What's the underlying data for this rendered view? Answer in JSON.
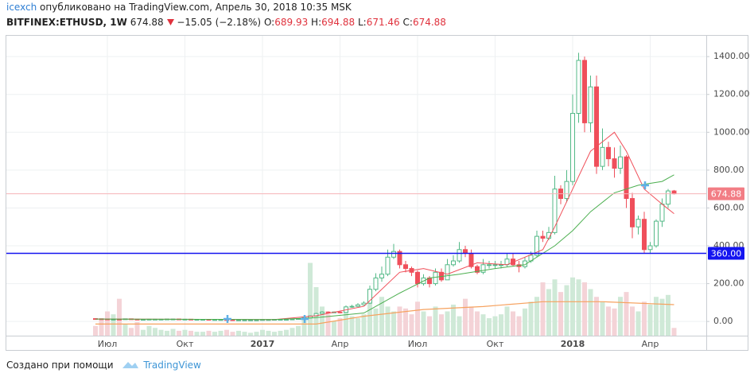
{
  "header": {
    "author": "icexch",
    "published": "опубликовано на TradingView.com, Апрель 30, 2018 10:35 MSK",
    "symbol": "BITFINEX:ETHUSD, 1W",
    "last": "674.88",
    "change": "−15.05 (−2.18%)",
    "ohlc": [
      {
        "key": "O:",
        "value": "689.93"
      },
      {
        "key": "H:",
        "value": "694.88"
      },
      {
        "key": "L:",
        "value": "671.46"
      },
      {
        "key": "C:",
        "value": "674.88"
      }
    ]
  },
  "chart_data": {
    "type": "candlestick",
    "categories": [
      null,
      null,
      "Июл",
      null,
      null,
      null,
      null,
      null,
      null,
      null,
      null,
      null,
      null,
      null,
      null,
      "Окт",
      null,
      null,
      null,
      null,
      null,
      null,
      null,
      null,
      null,
      null,
      null,
      null,
      "2017",
      null,
      null,
      null,
      null,
      null,
      null,
      null,
      null,
      null,
      null,
      null,
      null,
      "Апр",
      null,
      null,
      null,
      null,
      null,
      null,
      null,
      null,
      null,
      null,
      null,
      null,
      "Июл",
      null,
      null,
      null,
      null,
      null,
      null,
      null,
      null,
      null,
      null,
      null,
      null,
      "Окт",
      null,
      null,
      null,
      null,
      null,
      null,
      null,
      null,
      null,
      null,
      null,
      null,
      "2018",
      null,
      null,
      null,
      null,
      null,
      null,
      null,
      null,
      null,
      null,
      null,
      null,
      "Апр",
      null,
      null,
      null,
      null
    ],
    "open": [
      15,
      14,
      13,
      12,
      12,
      11,
      14,
      12,
      11,
      11,
      12,
      12,
      12,
      13,
      13,
      12,
      12,
      11,
      11,
      11,
      10,
      10,
      10,
      9,
      8,
      8,
      8,
      8,
      8,
      10,
      10,
      11,
      11,
      11,
      13,
      15,
      19,
      29,
      42,
      50,
      48,
      50,
      48,
      77,
      80,
      88,
      97,
      170,
      230,
      250,
      340,
      370,
      300,
      280,
      260,
      200,
      230,
      200,
      260,
      220,
      300,
      320,
      380,
      360,
      290,
      260,
      300,
      300,
      300,
      300,
      330,
      300,
      290,
      320,
      350,
      450,
      440,
      470,
      700,
      650,
      740,
      1100,
      1380,
      1050,
      1240,
      820,
      920,
      860,
      810,
      870,
      650,
      500,
      540,
      380,
      400,
      530,
      620,
      689.93
    ],
    "high": [
      17,
      15,
      14,
      13,
      13,
      15,
      15,
      13,
      12,
      13,
      13,
      13,
      14,
      14,
      14,
      13,
      13,
      12,
      12,
      12,
      11,
      11,
      11,
      10,
      9,
      9,
      9,
      9,
      11,
      11,
      12,
      12,
      12,
      14,
      16,
      21,
      32,
      46,
      55,
      53,
      53,
      54,
      85,
      88,
      97,
      107,
      190,
      255,
      290,
      380,
      410,
      380,
      320,
      290,
      270,
      250,
      240,
      280,
      280,
      330,
      350,
      420,
      400,
      380,
      300,
      330,
      320,
      320,
      320,
      360,
      360,
      320,
      340,
      370,
      480,
      480,
      500,
      770,
      720,
      800,
      1200,
      1420,
      1400,
      1300,
      1300,
      1020,
      950,
      920,
      930,
      880,
      680,
      560,
      580,
      420,
      540,
      650,
      700,
      694.88
    ],
    "low": [
      12,
      11,
      11,
      10,
      10,
      10,
      11,
      10,
      10,
      10,
      11,
      11,
      11,
      12,
      11,
      11,
      10,
      10,
      10,
      9,
      9,
      9,
      8,
      7,
      7,
      7,
      7,
      7,
      7,
      9,
      9,
      10,
      10,
      10,
      12,
      14,
      17,
      27,
      40,
      44,
      45,
      44,
      46,
      72,
      76,
      84,
      92,
      160,
      210,
      240,
      330,
      280,
      260,
      240,
      180,
      190,
      180,
      190,
      210,
      220,
      290,
      310,
      340,
      280,
      250,
      250,
      280,
      280,
      280,
      290,
      290,
      260,
      280,
      310,
      340,
      420,
      430,
      460,
      620,
      630,
      720,
      1050,
      1000,
      1000,
      780,
      800,
      820,
      760,
      780,
      600,
      440,
      460,
      360,
      360,
      390,
      500,
      600,
      671.46
    ],
    "close": [
      14,
      13,
      12,
      12,
      11,
      14,
      12,
      11,
      11,
      12,
      12,
      12,
      13,
      13,
      12,
      12,
      11,
      11,
      11,
      10,
      10,
      10,
      9,
      8,
      8,
      8,
      8,
      8,
      10,
      10,
      11,
      11,
      11,
      13,
      15,
      19,
      29,
      42,
      50,
      48,
      50,
      48,
      77,
      80,
      88,
      97,
      170,
      230,
      250,
      340,
      370,
      300,
      280,
      260,
      200,
      230,
      200,
      260,
      220,
      300,
      320,
      380,
      360,
      290,
      260,
      300,
      300,
      300,
      300,
      330,
      300,
      290,
      320,
      350,
      450,
      440,
      470,
      700,
      650,
      740,
      1100,
      1380,
      1050,
      1240,
      820,
      920,
      860,
      810,
      870,
      650,
      500,
      540,
      380,
      400,
      530,
      620,
      689.93,
      674.88
    ],
    "up_color": "#53b987",
    "down_color": "#ef4f5b",
    "volume": [
      10,
      18,
      25,
      22,
      38,
      12,
      8,
      14,
      6,
      10,
      8,
      6,
      5,
      7,
      5,
      6,
      5,
      4,
      4,
      5,
      4,
      5,
      6,
      4,
      5,
      4,
      3,
      4,
      6,
      5,
      4,
      5,
      6,
      8,
      10,
      20,
      75,
      50,
      30,
      22,
      15,
      18,
      25,
      20,
      18,
      22,
      35,
      28,
      40,
      30,
      25,
      30,
      28,
      22,
      35,
      25,
      20,
      30,
      22,
      25,
      32,
      20,
      38,
      30,
      25,
      22,
      18,
      20,
      22,
      30,
      25,
      20,
      28,
      35,
      40,
      55,
      48,
      58,
      45,
      52,
      60,
      58,
      55,
      48,
      40,
      35,
      30,
      28,
      40,
      45,
      30,
      25,
      35,
      32,
      40,
      38,
      42,
      8
    ],
    "volume_lim": [
      0,
      100
    ],
    "volume_colors": {
      "up": "#cfe9d7",
      "down": "#f4d3d7"
    },
    "volume_ma": {
      "color": "#f6a25f",
      "x": [
        0,
        20,
        37,
        45,
        55,
        65,
        75,
        85,
        97
      ],
      "values": [
        12,
        12,
        12,
        20,
        27,
        30,
        35,
        35,
        32
      ]
    },
    "overlays": [
      {
        "color": "#f0505a",
        "x": [
          0,
          20,
          30,
          37,
          45,
          51,
          55,
          59,
          64,
          69,
          75,
          77,
          80,
          83,
          87,
          89,
          92,
          95,
          97
        ],
        "values": [
          13,
          11,
          10,
          30,
          80,
          260,
          280,
          250,
          310,
          300,
          380,
          500,
          700,
          900,
          1000,
          900,
          700,
          620,
          570
        ]
      },
      {
        "color": "#4caf50",
        "x": [
          0,
          20,
          30,
          37,
          45,
          51,
          56,
          61,
          67,
          72,
          77,
          80,
          83,
          87,
          91,
          95,
          97
        ],
        "values": [
          13,
          11,
          10,
          20,
          45,
          150,
          230,
          250,
          280,
          300,
          400,
          480,
          580,
          680,
          720,
          740,
          775
        ]
      }
    ],
    "hlines": [
      {
        "value": 674.88,
        "label": "674.88",
        "color": "#f27d85",
        "line_color": "#f6b3b7"
      },
      {
        "value": 360,
        "label": "360.00",
        "color": "#1414f0",
        "line_color": "#1414f0"
      }
    ],
    "ylim": [
      -75,
      1510
    ],
    "yticks": [
      {
        "value": 0,
        "label": "0.00"
      },
      {
        "value": 200,
        "label": "200.00"
      },
      {
        "value": 400,
        "label": "400.00"
      },
      {
        "value": 600,
        "label": "600.00"
      },
      {
        "value": 800,
        "label": "800.00"
      },
      {
        "value": 1000,
        "label": "1000.00"
      },
      {
        "value": 1200,
        "label": "1200.00"
      },
      {
        "value": 1400,
        "label": "1400.00"
      }
    ],
    "grid": true
  },
  "footer": {
    "text": "Создано при помощи",
    "brand": "TradingView"
  }
}
